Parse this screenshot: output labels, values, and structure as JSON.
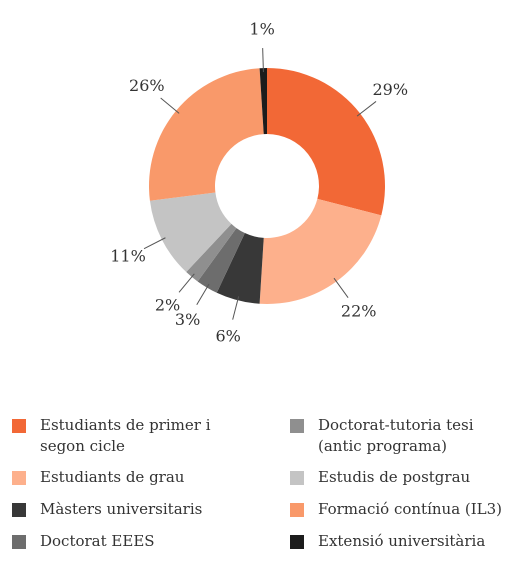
{
  "chart_data": {
    "type": "donut",
    "series": [
      {
        "name": "Estudiants de primer i segon cicle",
        "color": "#f26836",
        "values": [
          29
        ],
        "value_labels": [
          "29%"
        ]
      },
      {
        "name": "Estudiants de grau",
        "color": "#fdb08c",
        "values": [
          22
        ],
        "value_labels": [
          "22%"
        ]
      },
      {
        "name": "Màsters universitaris",
        "color": "#383838",
        "values": [
          6
        ],
        "value_labels": [
          "6%"
        ]
      },
      {
        "name": "Doctorat EEES",
        "color": "#6d6d6d",
        "values": [
          3
        ],
        "value_labels": [
          "3%"
        ]
      },
      {
        "name": "Doctorat-tutoria tesi (antic programa)",
        "color": "#8f8f8f",
        "values": [
          2
        ],
        "value_labels": [
          "2%"
        ]
      },
      {
        "name": "Estudis de postgrau",
        "color": "#c4c4c4",
        "values": [
          11
        ],
        "value_labels": [
          "11%"
        ]
      },
      {
        "name": "Formació contínua (IL3)",
        "color": "#f9996a",
        "values": [
          26
        ],
        "value_labels": [
          "26%"
        ]
      },
      {
        "name": "Extensió universitària",
        "color": "#1c1c1c",
        "values": [
          1
        ],
        "value_labels": [
          "1%"
        ]
      }
    ]
  }
}
